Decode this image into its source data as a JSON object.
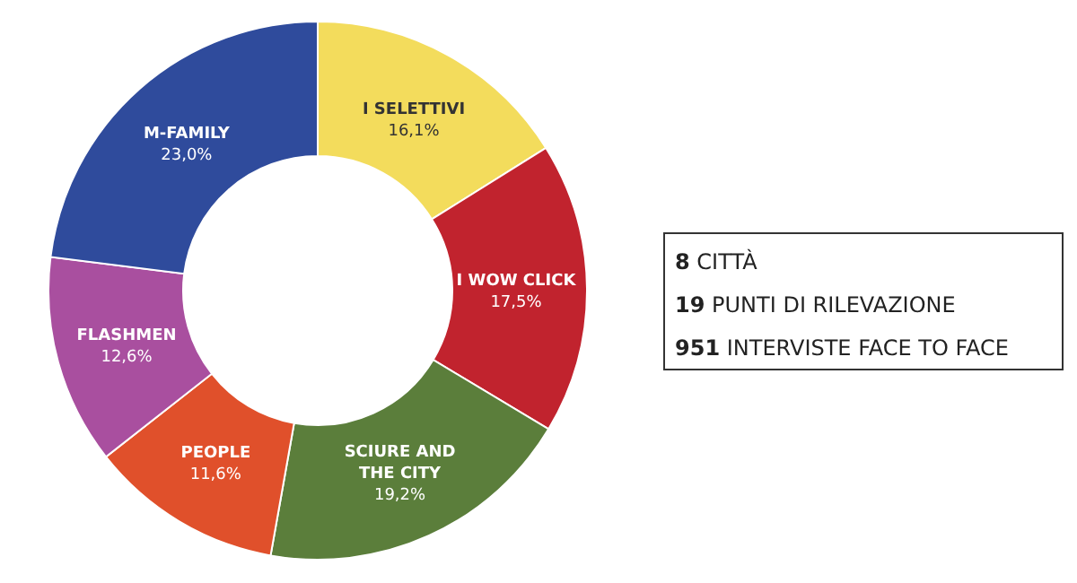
{
  "chart_data": [
    {
      "type": "donut",
      "categories": [
        "I SELETTIVI",
        "I WOW CLICK",
        "SCIURE AND THE CITY",
        "PEOPLE",
        "FLASHMEN",
        "M-FAMILY"
      ],
      "values": [
        16.1,
        17.5,
        19.2,
        11.6,
        12.6,
        23.0
      ],
      "value_labels": [
        "16,1%",
        "17,5%",
        "19,2%",
        "11,6%",
        "12,6%",
        "23,0%"
      ],
      "colors": [
        "#f3dc5c",
        "#c1232e",
        "#5b7e3b",
        "#e0502b",
        "#a94f9f",
        "#2f4b9c"
      ]
    },
    {
      "type": "other",
      "annotations": [
        "8 CITTÀ",
        "19 PUNTI DI RILEVAZIONE",
        "951 INTERVISTE FACE TO FACE"
      ]
    }
  ]
}
